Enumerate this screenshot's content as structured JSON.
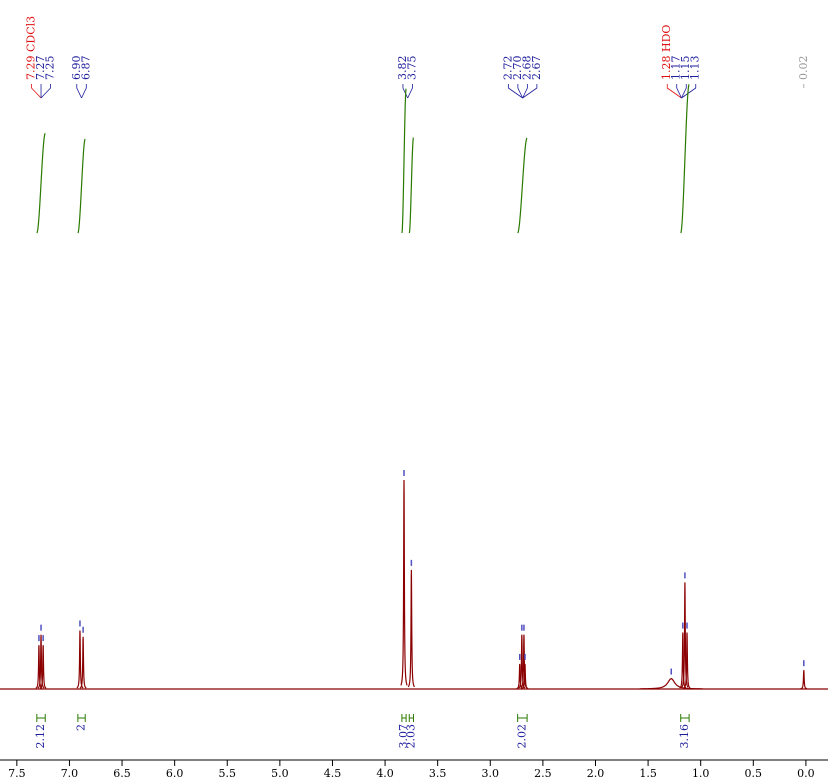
{
  "chart_data": {
    "type": "nmr",
    "xlim": [
      7.66,
      -0.21
    ],
    "ylim": [
      0,
      100
    ],
    "xticks": [
      7.5,
      {
        "value": 7,
        "label": "7.0"
      },
      6.5,
      {
        "value": 6,
        "label": "6.0"
      },
      5.5,
      {
        "value": 5,
        "label": "5.0"
      },
      4.5,
      {
        "value": 4,
        "label": "4.0"
      },
      3.5,
      {
        "value": 3,
        "label": "3.0"
      },
      2.5,
      {
        "value": 2,
        "label": "2.0"
      },
      1.5,
      {
        "value": 1,
        "label": "1.0"
      },
      0.5,
      {
        "value": 0,
        "label": "0.0"
      }
    ],
    "color": "#8b0000",
    "integral_color": "#2a7a00",
    "peaks": [
      {
        "ppm": 7.29,
        "intensity": 21,
        "label": "7.29 CDCl3",
        "color": "#e01010"
      },
      {
        "ppm": 7.27,
        "intensity": 26,
        "label": "7.27",
        "color": "#1c1c9c"
      },
      {
        "ppm": 7.25,
        "intensity": 21,
        "label": "7.25",
        "color": "#1c1c9c"
      },
      {
        "ppm": 6.9,
        "intensity": 28,
        "label": "6.90",
        "color": "#1c1c9c"
      },
      {
        "ppm": 6.87,
        "intensity": 25,
        "label": "6.87",
        "color": "#1c1c9c"
      },
      {
        "ppm": 3.82,
        "intensity": 100,
        "label": "3.82",
        "color": "#1c1c9c"
      },
      {
        "ppm": 3.75,
        "intensity": 57,
        "label": "3.75",
        "color": "#1c1c9c"
      },
      {
        "ppm": 2.72,
        "intensity": 12,
        "label": "2.72",
        "color": "#1c1c9c"
      },
      {
        "ppm": 2.7,
        "intensity": 26,
        "label": "2.70",
        "color": "#1c1c9c"
      },
      {
        "ppm": 2.68,
        "intensity": 26,
        "label": "2.68",
        "color": "#1c1c9c"
      },
      {
        "ppm": 2.67,
        "intensity": 12,
        "label": "2.67",
        "color": "#1c1c9c"
      },
      {
        "ppm": 1.28,
        "intensity": 5,
        "label": "1.28 HDO",
        "color": "#e01010"
      },
      {
        "ppm": 1.17,
        "intensity": 27,
        "label": "1.17",
        "color": "#1c1c9c"
      },
      {
        "ppm": 1.15,
        "intensity": 51,
        "label": "1.15",
        "color": "#1c1c9c"
      },
      {
        "ppm": 1.13,
        "intensity": 27,
        "label": "1.13",
        "color": "#1c1c9c"
      },
      {
        "ppm": 0.02,
        "intensity": 9,
        "label": "0.02",
        "color": "#999999"
      }
    ],
    "integrals": [
      {
        "from": 7.31,
        "to": 7.23,
        "value": 2.12
      },
      {
        "from": 6.92,
        "to": 6.85,
        "value": 2.0
      },
      {
        "from": 3.84,
        "to": 3.8,
        "value": 3.07
      },
      {
        "from": 3.77,
        "to": 3.73,
        "value": 2.03
      },
      {
        "from": 2.74,
        "to": 2.65,
        "value": 2.02
      },
      {
        "from": 1.19,
        "to": 1.11,
        "value": 3.16
      }
    ]
  }
}
